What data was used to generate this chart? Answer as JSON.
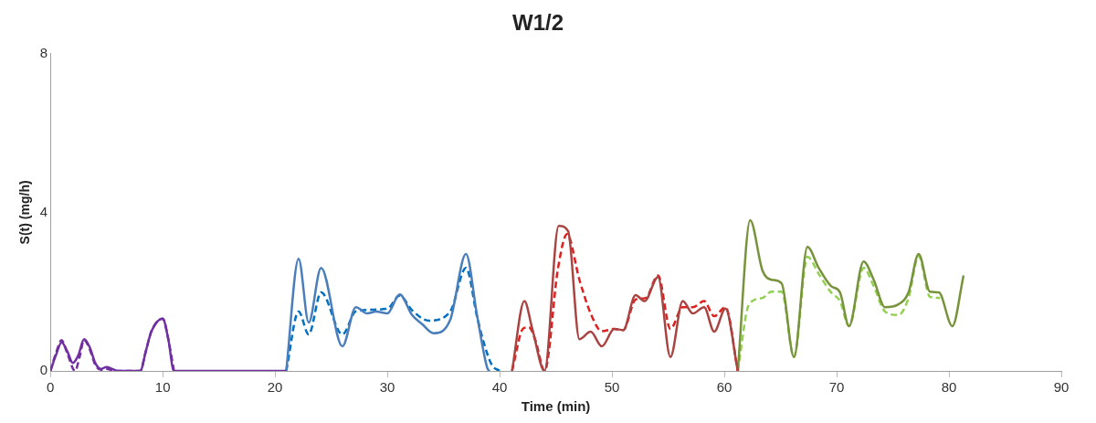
{
  "chart_data": {
    "type": "line",
    "title": "W1/2",
    "xlabel": "Time (min)",
    "ylabel": "S(t) (mg/h)",
    "xlim": [
      0,
      90
    ],
    "xticks": [
      0,
      10,
      20,
      30,
      40,
      50,
      60,
      70,
      80,
      90
    ],
    "ylim": [
      0,
      8
    ],
    "yticks": [
      0,
      4,
      8
    ],
    "grid": false,
    "legend": false,
    "marker": "none",
    "series": [
      {
        "color": "#7030a0",
        "line_style": "solid",
        "x": [
          0,
          0.5,
          1,
          1.5,
          2,
          2.5,
          3,
          3.5,
          4,
          4.5,
          5,
          5.5,
          6,
          8,
          8.5,
          9,
          10,
          10.5,
          11,
          21
        ],
        "values": [
          0,
          0.4,
          0.72,
          0.5,
          0.2,
          0.4,
          0.8,
          0.6,
          0.2,
          0.05,
          0.1,
          0.05,
          0,
          0,
          0.5,
          1.0,
          1.32,
          0.8,
          0,
          0
        ]
      },
      {
        "color": "#7030a0",
        "line_style": "dashed",
        "x": [
          0,
          0.5,
          1,
          1.5,
          2.2,
          2.6,
          3,
          3.5,
          4,
          4.5,
          5,
          5.5,
          6,
          8,
          8.5,
          9,
          10,
          10.5,
          11
        ],
        "values": [
          0,
          0.45,
          0.78,
          0.45,
          0,
          0.35,
          0.78,
          0.55,
          0.15,
          0.03,
          0.05,
          0.02,
          0,
          0,
          0.5,
          1.0,
          1.32,
          0.8,
          0
        ]
      },
      {
        "color": "#4a7ebb",
        "line_style": "solid",
        "x": [
          21,
          22.1,
          23,
          24.1,
          26,
          27.2,
          28.2,
          29,
          30,
          31.1,
          32.2,
          33.1,
          34.1,
          35.6,
          37,
          38,
          38.9,
          39.1
        ],
        "values": [
          0,
          2.83,
          1.22,
          2.6,
          0.62,
          1.61,
          1.45,
          1.5,
          1.45,
          1.93,
          1.41,
          1.18,
          0.95,
          1.29,
          2.95,
          1.38,
          0.07,
          0
        ]
      },
      {
        "color": "#0070c0",
        "line_style": "dashed",
        "x": [
          21,
          22.1,
          23,
          24.1,
          26,
          27.2,
          30,
          31.1,
          32.2,
          33.7,
          35.6,
          37,
          38,
          38.6,
          39.3,
          40
        ],
        "values": [
          0,
          1.5,
          0.92,
          1.98,
          0.92,
          1.5,
          1.57,
          1.9,
          1.53,
          1.27,
          1.5,
          2.6,
          1.35,
          0.7,
          0.15,
          0
        ]
      },
      {
        "color": "#a94442",
        "line_style": "solid",
        "x": [
          41.1,
          42.2,
          42.9,
          44,
          45.25,
          46.1,
          47.1,
          48.1,
          49.1,
          50.2,
          51,
          52.1,
          52.9,
          54.1,
          55.2,
          56.3,
          57.2,
          58.2,
          59.1,
          60.1,
          61.2
        ],
        "values": [
          0,
          1.76,
          1.07,
          0,
          3.66,
          3.52,
          0.8,
          0.99,
          0.62,
          1.06,
          1.03,
          1.91,
          1.76,
          2.37,
          0.35,
          1.76,
          1.45,
          1.61,
          0.99,
          1.57,
          0
        ]
      },
      {
        "color": "#e01f1f",
        "line_style": "dashed",
        "x": [
          41.1,
          42.1,
          42.6,
          43.2,
          44,
          45.2,
          46,
          47.1,
          48.1,
          49.1,
          50.2,
          51,
          52.1,
          53,
          54.1,
          55.2,
          56.3,
          57.2,
          58.2,
          59.1,
          60.1,
          61.2
        ],
        "values": [
          0,
          1.07,
          1.1,
          0.76,
          0,
          2.6,
          3.45,
          2.3,
          1.45,
          1.0,
          1.06,
          1.03,
          1.8,
          1.84,
          2.41,
          1.06,
          1.61,
          1.61,
          1.76,
          1.38,
          1.61,
          0
        ]
      },
      {
        "color": "#77933c",
        "line_style": "solid",
        "x": [
          61.2,
          62.3,
          63.4,
          64.2,
          65.1,
          66.2,
          67.4,
          68.4,
          69.5,
          70.3,
          71.1,
          72.4,
          73.3,
          74.3,
          75.5,
          76.4,
          77.3,
          78.3,
          79.1,
          80.3,
          81.3
        ],
        "values": [
          0,
          3.8,
          2.53,
          2.3,
          2.21,
          0.35,
          3.13,
          2.6,
          2.14,
          1.98,
          1.13,
          2.76,
          2.3,
          1.61,
          1.68,
          1.98,
          2.95,
          2.0,
          1.98,
          1.13,
          2.41
        ]
      },
      {
        "color": "#92d050",
        "line_style": "dashed",
        "x": [
          61.2,
          62.2,
          63.4,
          64.2,
          65.1,
          66.2,
          67.4,
          68.4,
          69.5,
          70.3,
          71.1,
          72.4,
          73.3,
          74.3,
          75.5,
          76.4,
          77.3,
          78.3,
          79.2
        ],
        "values": [
          0,
          1.68,
          1.84,
          2.0,
          2.0,
          0.35,
          2.88,
          2.45,
          1.98,
          1.76,
          1.13,
          2.6,
          2.14,
          1.5,
          1.41,
          1.84,
          2.9,
          1.87,
          1.84
        ]
      }
    ]
  }
}
